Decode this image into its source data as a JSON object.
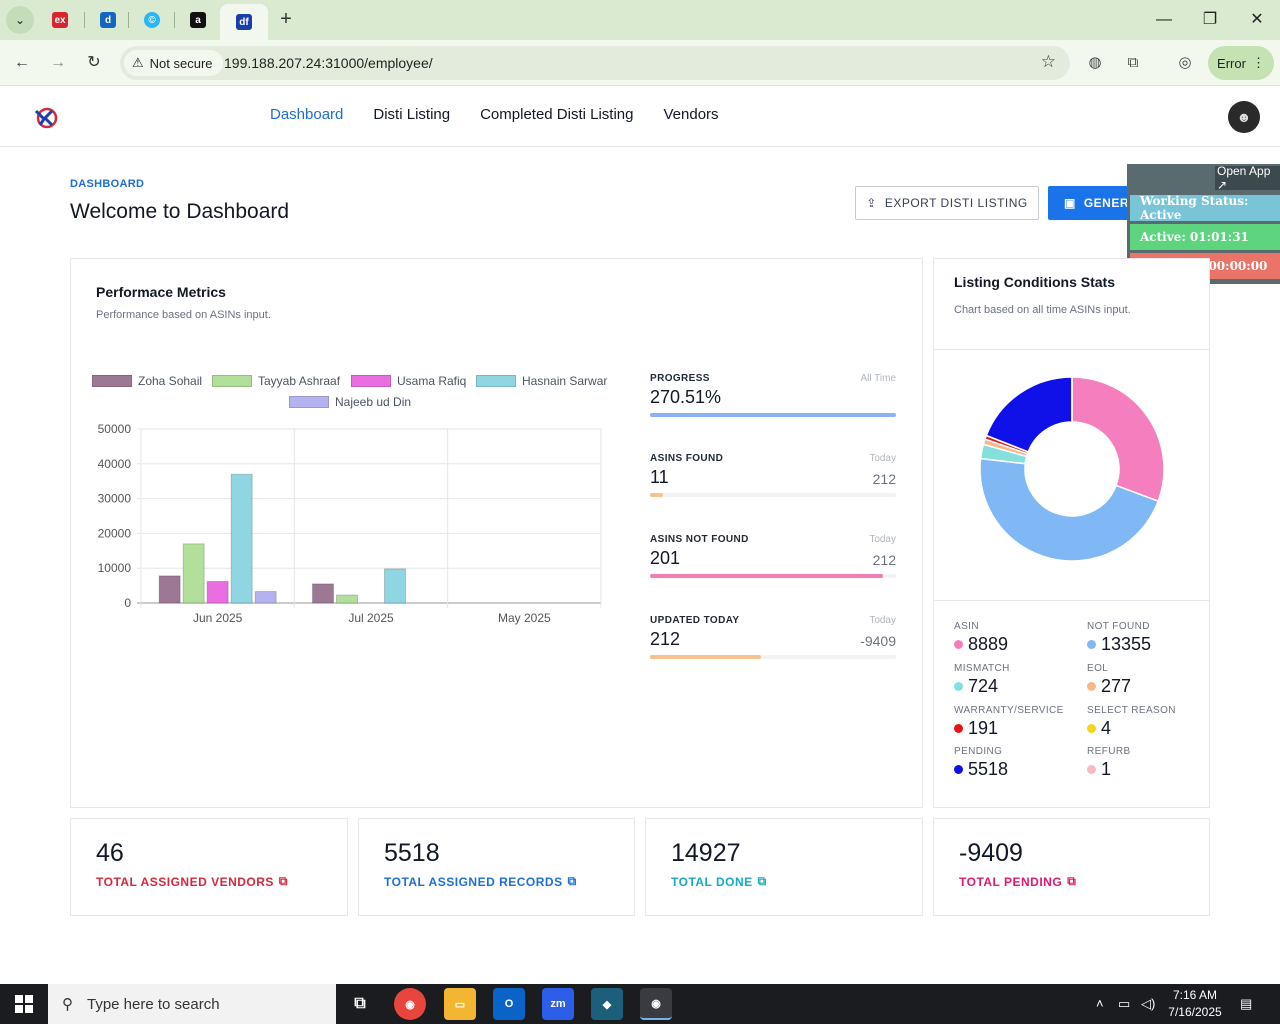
{
  "browser": {
    "tabs": [
      {
        "label": "ex",
        "color": "#d9232d"
      },
      {
        "label": "d",
        "color": "#1565c0"
      },
      {
        "label": "©",
        "color": "#29b6f6"
      },
      {
        "label": "a",
        "color": "#111111"
      },
      {
        "label": "df",
        "color": "#1a3fa8"
      }
    ],
    "new_tab": "+",
    "security": "Not secure",
    "url": "199.188.207.24:31000/employee/",
    "profile_status": "Error"
  },
  "app": {
    "nav": {
      "dashboard": "Dashboard",
      "disti_listing": "Disti Listing",
      "completed_disti_listing": "Completed Disti Listing",
      "vendors": "Vendors"
    },
    "breadcrumb": "DASHBOARD",
    "title": "Welcome to Dashboard",
    "buttons": {
      "export": "EXPORT DISTI LISTING",
      "generate": "GENERATE REPORT"
    }
  },
  "widget": {
    "open_app": "Open App ↗",
    "working_status": "Working Status: Active",
    "active": "Active: 01:01:31",
    "inactive": "In Active: 00:00:00"
  },
  "performance": {
    "title": "Performace Metrics",
    "subtitle": "Performance based on ASINs input.",
    "metrics": [
      {
        "label": "PROGRESS",
        "period": "All Time",
        "value": "270.51%",
        "total": "",
        "fill": 1.0,
        "color": "#8ab4f0"
      },
      {
        "label": "ASINS FOUND",
        "period": "Today",
        "value": "11",
        "total": "212",
        "fill": 0.052,
        "color": "#f5c290"
      },
      {
        "label": "ASINS NOT FOUND",
        "period": "Today",
        "value": "201",
        "total": "212",
        "fill": 0.948,
        "color": "#f07db3"
      },
      {
        "label": "UPDATED TODAY",
        "period": "Today",
        "value": "212",
        "total": "-9409",
        "fill": 0.45,
        "color": "#f5c290"
      }
    ]
  },
  "chart_data": {
    "type": "bar",
    "categories": [
      "Jun 2025",
      "Jul 2025",
      "May 2025"
    ],
    "ylim": [
      0,
      50000
    ],
    "yticks": [
      0,
      10000,
      20000,
      30000,
      40000,
      50000
    ],
    "series": [
      {
        "name": "Zoha Sohail",
        "color": "#9c7894",
        "values": [
          7800,
          5500,
          0
        ]
      },
      {
        "name": "Tayyab Ashraaf",
        "color": "#b2df9a",
        "values": [
          17000,
          2300,
          0
        ]
      },
      {
        "name": "Usama Rafiq",
        "color": "#e96ee0",
        "values": [
          6200,
          0,
          0
        ]
      },
      {
        "name": "Hasnain Sarwar",
        "color": "#8fd6e2",
        "values": [
          37000,
          9800,
          0
        ]
      },
      {
        "name": "Najeeb ud Din",
        "color": "#b4b2ef",
        "values": [
          3300,
          0,
          0
        ]
      }
    ],
    "grid": true,
    "legend": "top"
  },
  "listing": {
    "title": "Listing Conditions Stats",
    "subtitle": "Chart based on all time ASINs input.",
    "donut": [
      {
        "name": "ASIN",
        "value": 8889,
        "color": "#f57fbe"
      },
      {
        "name": "NOT FOUND",
        "value": 13355,
        "color": "#80b7f5"
      },
      {
        "name": "MISMATCH",
        "value": 724,
        "color": "#84e0dc"
      },
      {
        "name": "EOL",
        "value": 277,
        "color": "#f8b88b"
      },
      {
        "name": "WARRANTY/SERVICE",
        "value": 191,
        "color": "#e5141a"
      },
      {
        "name": "SELECT REASON",
        "value": 4,
        "color": "#f5d516"
      },
      {
        "name": "PENDING",
        "value": 5518,
        "color": "#1010e8"
      },
      {
        "name": "REFURB",
        "value": 1,
        "color": "#f7b9c6"
      }
    ],
    "stats": [
      {
        "head": "ASIN",
        "value": "8889",
        "color": "#f57fbe"
      },
      {
        "head": "NOT FOUND",
        "value": "13355",
        "color": "#80b7f5"
      },
      {
        "head": "MISMATCH",
        "value": "724",
        "color": "#84e0dc"
      },
      {
        "head": "EOL",
        "value": "277",
        "color": "#f8b88b"
      },
      {
        "head": "WARRANTY/SERVICE",
        "value": "191",
        "color": "#e5141a"
      },
      {
        "head": "SELECT REASON",
        "value": "4",
        "color": "#f5d516"
      },
      {
        "head": "PENDING",
        "value": "5518",
        "color": "#1010e8"
      },
      {
        "head": "REFURB",
        "value": "1",
        "color": "#f7b9c6"
      }
    ]
  },
  "totals": [
    {
      "value": "46",
      "label": "TOTAL ASSIGNED VENDORS",
      "color": "#d6283c"
    },
    {
      "value": "5518",
      "label": "TOTAL ASSIGNED RECORDS",
      "color": "#1d6fd8"
    },
    {
      "value": "14927",
      "label": "TOTAL DONE",
      "color": "#17a9c6"
    },
    {
      "value": "-9409",
      "label": "TOTAL PENDING",
      "color": "#e0196f"
    }
  ],
  "taskbar": {
    "search_placeholder": "Type here to search",
    "time": "7:16 AM",
    "date": "7/16/2025"
  }
}
